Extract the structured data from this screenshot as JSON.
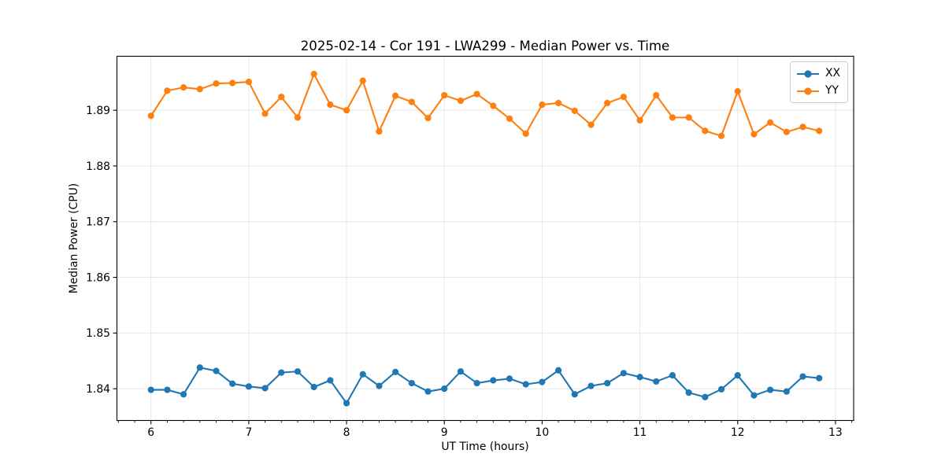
{
  "chart_data": {
    "type": "line",
    "title": "2025-02-14 - Cor 191 - LWA299 - Median Power vs. Time",
    "xlabel": "UT Time (hours)",
    "ylabel": "Median Power (CPU)",
    "xlim": [
      5.652,
      13.186
    ],
    "ylim": [
      1.8343,
      1.8997
    ],
    "x_ticks": [
      6,
      7,
      8,
      9,
      10,
      11,
      12,
      13
    ],
    "x_tick_labels": [
      "6",
      "7",
      "8",
      "9",
      "10",
      "11",
      "12",
      "13"
    ],
    "x_minor_tick_step": 0.1666667,
    "y_ticks": [
      1.84,
      1.85,
      1.86,
      1.87,
      1.88,
      1.89
    ],
    "y_tick_labels": [
      "1.84",
      "1.85",
      "1.86",
      "1.87",
      "1.88",
      "1.89"
    ],
    "grid": true,
    "legend_position": "upper right",
    "x": [
      6.0,
      6.1667,
      6.3333,
      6.5,
      6.6667,
      6.8333,
      7.0,
      7.1667,
      7.3333,
      7.5,
      7.6667,
      7.8333,
      8.0,
      8.1667,
      8.3333,
      8.5,
      8.6667,
      8.8333,
      9.0,
      9.1667,
      9.3333,
      9.5,
      9.6667,
      9.8333,
      10.0,
      10.1667,
      10.3333,
      10.5,
      10.6667,
      10.8333,
      11.0,
      11.1667,
      11.3333,
      11.5,
      11.6667,
      11.8333,
      12.0,
      12.1667,
      12.3333,
      12.5,
      12.6667,
      12.8333
    ],
    "series": [
      {
        "name": "XX",
        "color": "#1f77b4",
        "values": [
          1.8398,
          1.8398,
          1.839,
          1.8438,
          1.8432,
          1.8409,
          1.8404,
          1.8401,
          1.8429,
          1.8431,
          1.8403,
          1.8415,
          1.8374,
          1.8426,
          1.8405,
          1.843,
          1.841,
          1.8395,
          1.84,
          1.8431,
          1.841,
          1.8415,
          1.8418,
          1.8408,
          1.8412,
          1.8433,
          1.839,
          1.8405,
          1.841,
          1.8428,
          1.8421,
          1.8413,
          1.8424,
          1.8393,
          1.8385,
          1.8399,
          1.8424,
          1.8388,
          1.8398,
          1.8395,
          1.8422,
          1.8419
        ]
      },
      {
        "name": "YY",
        "color": "#ff7f0e",
        "values": [
          1.889,
          1.8935,
          1.8941,
          1.8938,
          1.8948,
          1.8949,
          1.8951,
          1.8894,
          1.8924,
          1.8887,
          1.8965,
          1.891,
          1.89,
          1.8953,
          1.8862,
          1.8926,
          1.8915,
          1.8886,
          1.8927,
          1.8917,
          1.8929,
          1.8908,
          1.8885,
          1.8858,
          1.891,
          1.8913,
          1.8899,
          1.8874,
          1.8913,
          1.8924,
          1.8882,
          1.8927,
          1.8887,
          1.8887,
          1.8863,
          1.8854,
          1.8934,
          1.8857,
          1.8878,
          1.8861,
          1.887,
          1.8863
        ]
      }
    ],
    "colors": {
      "spine": "#000000",
      "grid": "#e7e7e7",
      "tick": "#000000",
      "text": "#000000",
      "background": "#ffffff",
      "legend_border": "#cccccc"
    }
  }
}
